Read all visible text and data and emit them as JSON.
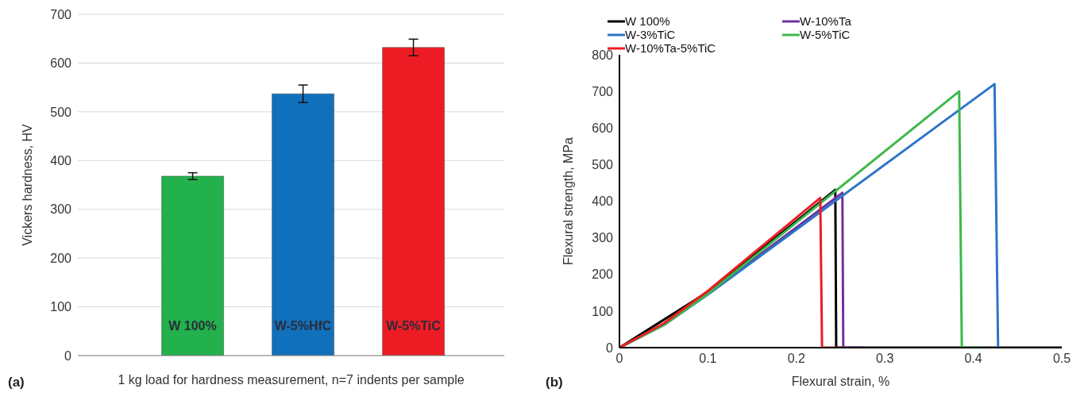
{
  "chart_data": [
    {
      "type": "bar",
      "ylabel": "Vickers hardness, HV",
      "xlabel": "1 kg load for hardness measurement, n=7 indents per sample",
      "categories": [
        "W 100%",
        "W-5%HfC",
        "W-5%TiC"
      ],
      "values": [
        368,
        537,
        632
      ],
      "errors": [
        7,
        18,
        17
      ],
      "colors": [
        "#22b14c",
        "#1170bb",
        "#ed1c24"
      ],
      "ylim": [
        0,
        700
      ],
      "yticks": [
        0,
        100,
        200,
        300,
        400,
        500,
        600,
        700
      ],
      "grid": "y",
      "annotations": [
        "(a)"
      ]
    },
    {
      "type": "line",
      "xlabel": "Flexural strain, %",
      "ylabel": "Flexural strength, MPa",
      "xlim": [
        0,
        0.5
      ],
      "xticks": [
        0,
        0.1,
        0.2,
        0.3,
        0.4,
        0.5
      ],
      "ylim": [
        0,
        800
      ],
      "yticks": [
        0,
        100,
        200,
        300,
        400,
        500,
        600,
        700,
        800
      ],
      "grid": false,
      "legend": "top",
      "marker": "none",
      "line_style": "solid",
      "annotations": [
        "(b)"
      ],
      "series": [
        {
          "name": "W 100%",
          "color": "#000000",
          "x": [
            0,
            0.1,
            0.244,
            0.245,
            0.5
          ],
          "values": [
            0,
            152,
            431,
            0,
            0
          ]
        },
        {
          "name": "W-10%Ta",
          "color": "#7030a0",
          "x": [
            0,
            0.05,
            0.1,
            0.252,
            0.253,
            0.275
          ],
          "values": [
            0,
            62,
            147,
            423,
            0,
            0
          ]
        },
        {
          "name": "W-3%TiC",
          "color": "#2e75c8",
          "x": [
            0,
            0.05,
            0.1,
            0.424,
            0.428
          ],
          "values": [
            0,
            62,
            145,
            720,
            0
          ]
        },
        {
          "name": "W-5%TiC",
          "color": "#3cb94a",
          "x": [
            0,
            0.05,
            0.1,
            0.384,
            0.387,
            0.41
          ],
          "values": [
            0,
            62,
            147,
            700,
            0,
            0
          ]
        },
        {
          "name": "W-10%Ta-5%TiC",
          "color": "#ed1c24",
          "x": [
            0,
            0.05,
            0.1,
            0.227,
            0.229,
            0.252
          ],
          "values": [
            0,
            66,
            155,
            409,
            0,
            0
          ]
        }
      ]
    }
  ]
}
